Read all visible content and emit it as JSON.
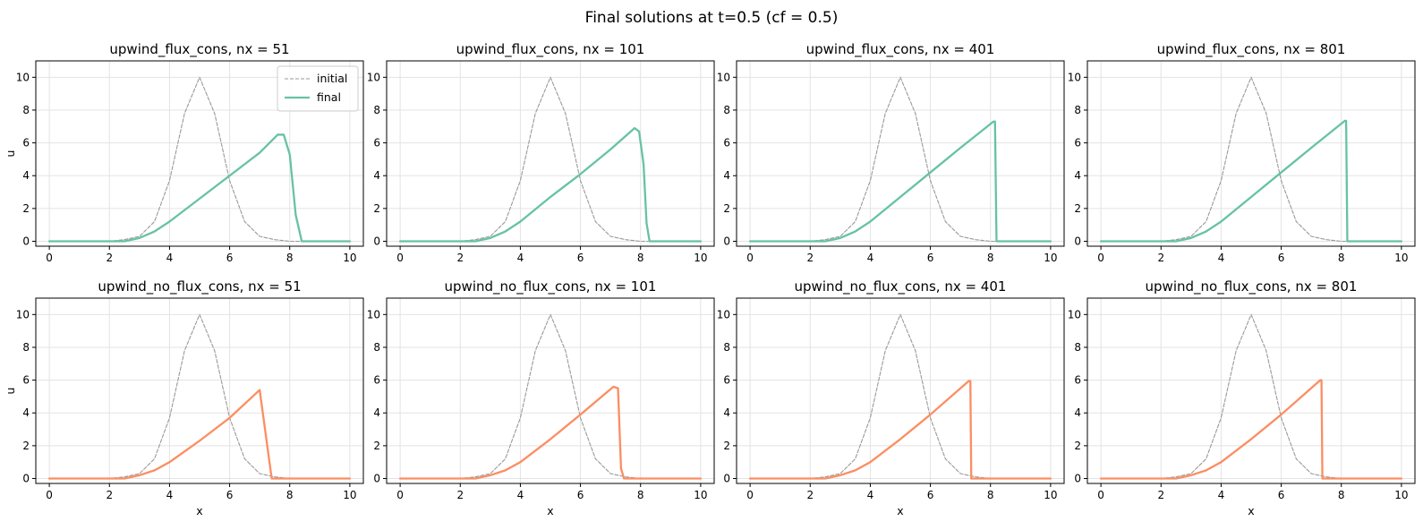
{
  "figure": {
    "title": "Final solutions at t=0.5 (cf = 0.5)"
  },
  "chart_data": [
    {
      "type": "line",
      "title": "upwind_flux_cons, nx = 51",
      "xlabel": "",
      "ylabel": "u",
      "xlim": [
        0,
        10
      ],
      "ylim": [
        -0.3,
        11
      ],
      "xticks": [
        0,
        2,
        4,
        6,
        8,
        10
      ],
      "yticks": [
        0,
        2,
        4,
        6,
        8,
        10
      ],
      "grid": true,
      "legend": {
        "position": "top-right",
        "entries": [
          "initial",
          "final"
        ]
      },
      "series": [
        {
          "name": "initial",
          "color": "#999999",
          "style": "dashed",
          "x": [
            0,
            2,
            2.5,
            3,
            3.5,
            4,
            4.5,
            5,
            5.5,
            6,
            6.5,
            7,
            7.5,
            8,
            10
          ],
          "y": [
            0,
            0,
            0.1,
            0.3,
            1.2,
            3.7,
            7.8,
            10,
            7.8,
            3.7,
            1.2,
            0.3,
            0.1,
            0,
            0
          ]
        },
        {
          "name": "final",
          "color": "#66c2a5",
          "style": "solid",
          "x": [
            0,
            2.5,
            3,
            3.5,
            4,
            5,
            6,
            7,
            7.6,
            7.8,
            8.0,
            8.2,
            8.4,
            10
          ],
          "y": [
            0,
            0,
            0.2,
            0.6,
            1.2,
            2.6,
            4.0,
            5.4,
            6.5,
            6.5,
            5.3,
            1.6,
            0,
            0
          ]
        }
      ]
    },
    {
      "type": "line",
      "title": "upwind_flux_cons, nx = 101",
      "xlabel": "",
      "ylabel": "",
      "xlim": [
        0,
        10
      ],
      "ylim": [
        -0.3,
        11
      ],
      "xticks": [
        0,
        2,
        4,
        6,
        8,
        10
      ],
      "yticks": [
        0,
        2,
        4,
        6,
        8,
        10
      ],
      "grid": true,
      "series": [
        {
          "name": "initial",
          "color": "#999999",
          "style": "dashed",
          "x": [
            0,
            2,
            2.5,
            3,
            3.5,
            4,
            4.5,
            5,
            5.5,
            6,
            6.5,
            7,
            7.5,
            8,
            10
          ],
          "y": [
            0,
            0,
            0.1,
            0.3,
            1.2,
            3.7,
            7.8,
            10,
            7.8,
            3.7,
            1.2,
            0.3,
            0.1,
            0,
            0
          ]
        },
        {
          "name": "final",
          "color": "#66c2a5",
          "style": "solid",
          "x": [
            0,
            2.5,
            3,
            3.5,
            4,
            5,
            6,
            7,
            7.8,
            7.95,
            8.1,
            8.2,
            8.3,
            10
          ],
          "y": [
            0,
            0,
            0.2,
            0.6,
            1.2,
            2.7,
            4.1,
            5.6,
            6.9,
            6.7,
            4.7,
            1.1,
            0,
            0
          ]
        }
      ]
    },
    {
      "type": "line",
      "title": "upwind_flux_cons, nx = 401",
      "xlabel": "",
      "ylabel": "",
      "xlim": [
        0,
        10
      ],
      "ylim": [
        -0.3,
        11
      ],
      "xticks": [
        0,
        2,
        4,
        6,
        8,
        10
      ],
      "yticks": [
        0,
        2,
        4,
        6,
        8,
        10
      ],
      "grid": true,
      "series": [
        {
          "name": "initial",
          "color": "#999999",
          "style": "dashed",
          "x": [
            0,
            2,
            2.5,
            3,
            3.5,
            4,
            4.5,
            5,
            5.5,
            6,
            6.5,
            7,
            7.5,
            8,
            10
          ],
          "y": [
            0,
            0,
            0.1,
            0.3,
            1.2,
            3.7,
            7.8,
            10,
            7.8,
            3.7,
            1.2,
            0.3,
            0.1,
            0,
            0
          ]
        },
        {
          "name": "final",
          "color": "#66c2a5",
          "style": "solid",
          "x": [
            0,
            2.5,
            3,
            3.5,
            4,
            5,
            6,
            7,
            8.1,
            8.15,
            8.2,
            10
          ],
          "y": [
            0,
            0,
            0.2,
            0.6,
            1.2,
            2.7,
            4.2,
            5.7,
            7.3,
            7.3,
            0,
            0
          ]
        }
      ]
    },
    {
      "type": "line",
      "title": "upwind_flux_cons, nx = 801",
      "xlabel": "",
      "ylabel": "",
      "xlim": [
        0,
        10
      ],
      "ylim": [
        -0.3,
        11
      ],
      "xticks": [
        0,
        2,
        4,
        6,
        8,
        10
      ],
      "yticks": [
        0,
        2,
        4,
        6,
        8,
        10
      ],
      "grid": true,
      "series": [
        {
          "name": "initial",
          "color": "#999999",
          "style": "dashed",
          "x": [
            0,
            2,
            2.5,
            3,
            3.5,
            4,
            4.5,
            5,
            5.5,
            6,
            6.5,
            7,
            7.5,
            8,
            10
          ],
          "y": [
            0,
            0,
            0.1,
            0.3,
            1.2,
            3.7,
            7.8,
            10,
            7.8,
            3.7,
            1.2,
            0.3,
            0.1,
            0,
            0
          ]
        },
        {
          "name": "final",
          "color": "#66c2a5",
          "style": "solid",
          "x": [
            0,
            2.5,
            3,
            3.5,
            4,
            5,
            6,
            7,
            8.12,
            8.16,
            8.2,
            10
          ],
          "y": [
            0,
            0,
            0.2,
            0.6,
            1.2,
            2.7,
            4.2,
            5.7,
            7.35,
            7.35,
            0,
            0
          ]
        }
      ]
    },
    {
      "type": "line",
      "title": "upwind_no_flux_cons, nx = 51",
      "xlabel": "x",
      "ylabel": "u",
      "xlim": [
        0,
        10
      ],
      "ylim": [
        -0.3,
        11
      ],
      "xticks": [
        0,
        2,
        4,
        6,
        8,
        10
      ],
      "yticks": [
        0,
        2,
        4,
        6,
        8,
        10
      ],
      "grid": true,
      "series": [
        {
          "name": "initial",
          "color": "#999999",
          "style": "dashed",
          "x": [
            0,
            2,
            2.5,
            3,
            3.5,
            4,
            4.5,
            5,
            5.5,
            6,
            6.5,
            7,
            7.5,
            8,
            10
          ],
          "y": [
            0,
            0,
            0.1,
            0.3,
            1.2,
            3.7,
            7.8,
            10,
            7.8,
            3.7,
            1.2,
            0.3,
            0.1,
            0,
            0
          ]
        },
        {
          "name": "final",
          "color": "#fc8d62",
          "style": "solid",
          "x": [
            0,
            2.5,
            3,
            3.5,
            4,
            5,
            6,
            7.0,
            7.4,
            10
          ],
          "y": [
            0,
            0,
            0.2,
            0.5,
            1.0,
            2.3,
            3.7,
            5.4,
            0,
            0
          ]
        }
      ]
    },
    {
      "type": "line",
      "title": "upwind_no_flux_cons, nx = 101",
      "xlabel": "x",
      "ylabel": "",
      "xlim": [
        0,
        10
      ],
      "ylim": [
        -0.3,
        11
      ],
      "xticks": [
        0,
        2,
        4,
        6,
        8,
        10
      ],
      "yticks": [
        0,
        2,
        4,
        6,
        8,
        10
      ],
      "grid": true,
      "series": [
        {
          "name": "initial",
          "color": "#999999",
          "style": "dashed",
          "x": [
            0,
            2,
            2.5,
            3,
            3.5,
            4,
            4.5,
            5,
            5.5,
            6,
            6.5,
            7,
            7.5,
            8,
            10
          ],
          "y": [
            0,
            0,
            0.1,
            0.3,
            1.2,
            3.7,
            7.8,
            10,
            7.8,
            3.7,
            1.2,
            0.3,
            0.1,
            0,
            0
          ]
        },
        {
          "name": "final",
          "color": "#fc8d62",
          "style": "solid",
          "x": [
            0,
            2.5,
            3,
            3.5,
            4,
            5,
            6,
            7.1,
            7.25,
            7.35,
            7.45,
            10
          ],
          "y": [
            0,
            0,
            0.2,
            0.5,
            1.0,
            2.4,
            3.9,
            5.6,
            5.5,
            0.6,
            0,
            0
          ]
        }
      ]
    },
    {
      "type": "line",
      "title": "upwind_no_flux_cons, nx = 401",
      "xlabel": "x",
      "ylabel": "",
      "xlim": [
        0,
        10
      ],
      "ylim": [
        -0.3,
        11
      ],
      "xticks": [
        0,
        2,
        4,
        6,
        8,
        10
      ],
      "yticks": [
        0,
        2,
        4,
        6,
        8,
        10
      ],
      "grid": true,
      "series": [
        {
          "name": "initial",
          "color": "#999999",
          "style": "dashed",
          "x": [
            0,
            2,
            2.5,
            3,
            3.5,
            4,
            4.5,
            5,
            5.5,
            6,
            6.5,
            7,
            7.5,
            8,
            10
          ],
          "y": [
            0,
            0,
            0.1,
            0.3,
            1.2,
            3.7,
            7.8,
            10,
            7.8,
            3.7,
            1.2,
            0.3,
            0.1,
            0,
            0
          ]
        },
        {
          "name": "final",
          "color": "#fc8d62",
          "style": "solid",
          "x": [
            0,
            2.5,
            3,
            3.5,
            4,
            5,
            6,
            7.28,
            7.33,
            7.36,
            10
          ],
          "y": [
            0,
            0,
            0.2,
            0.5,
            1.0,
            2.4,
            3.9,
            5.95,
            5.95,
            0,
            0
          ]
        }
      ]
    },
    {
      "type": "line",
      "title": "upwind_no_flux_cons, nx = 801",
      "xlabel": "x",
      "ylabel": "",
      "xlim": [
        0,
        10
      ],
      "ylim": [
        -0.3,
        11
      ],
      "xticks": [
        0,
        2,
        4,
        6,
        8,
        10
      ],
      "yticks": [
        0,
        2,
        4,
        6,
        8,
        10
      ],
      "grid": true,
      "series": [
        {
          "name": "initial",
          "color": "#999999",
          "style": "dashed",
          "x": [
            0,
            2,
            2.5,
            3,
            3.5,
            4,
            4.5,
            5,
            5.5,
            6,
            6.5,
            7,
            7.5,
            8,
            10
          ],
          "y": [
            0,
            0,
            0.1,
            0.3,
            1.2,
            3.7,
            7.8,
            10,
            7.8,
            3.7,
            1.2,
            0.3,
            0.1,
            0,
            0
          ]
        },
        {
          "name": "final",
          "color": "#fc8d62",
          "style": "solid",
          "x": [
            0,
            2.5,
            3,
            3.5,
            4,
            5,
            6,
            7.3,
            7.34,
            7.37,
            10
          ],
          "y": [
            0,
            0,
            0.2,
            0.5,
            1.0,
            2.4,
            3.9,
            6.0,
            6.0,
            0,
            0
          ]
        }
      ]
    }
  ]
}
